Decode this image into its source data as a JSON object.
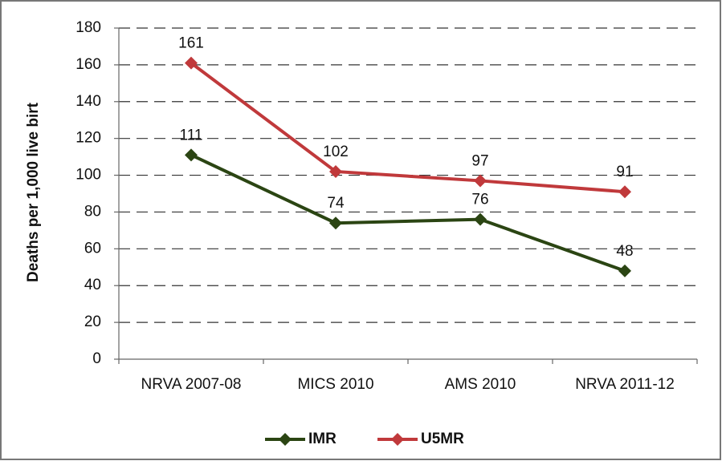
{
  "chart_data": {
    "type": "line",
    "y_label": "Deaths per 1,000 live birt",
    "categories": [
      "NRVA 2007-08",
      "MICS 2010",
      "AMS 2010",
      "NRVA 2011-12"
    ],
    "series": [
      {
        "name": "IMR",
        "color": "#2b4513",
        "values": [
          111,
          74,
          76,
          48
        ]
      },
      {
        "name": "U5MR",
        "color": "#c0393b",
        "values": [
          161,
          102,
          97,
          91
        ]
      }
    ],
    "ylim": [
      0,
      180
    ],
    "yticks": [
      0,
      20,
      40,
      60,
      80,
      100,
      120,
      140,
      160,
      180
    ],
    "grid": true,
    "legend": "bottom"
  }
}
